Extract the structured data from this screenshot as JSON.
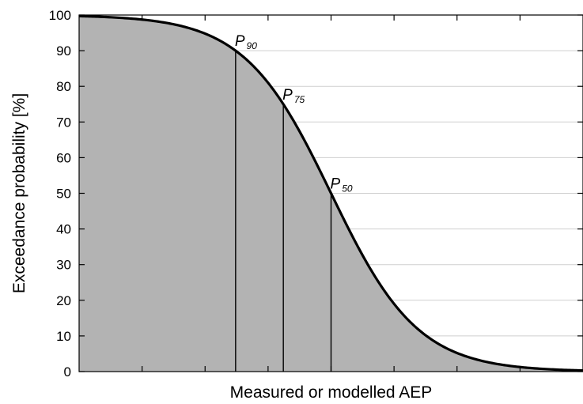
{
  "chart_data": {
    "type": "area",
    "title": "",
    "xlabel": "Measured or modelled AEP",
    "ylabel": "Exceedance probability [%]",
    "ylim": [
      0,
      100
    ],
    "yticks": [
      0,
      10,
      20,
      30,
      40,
      50,
      60,
      70,
      80,
      90,
      100
    ],
    "ytick_labels": [
      "0",
      "10",
      "20",
      "30",
      "40",
      "50",
      "60",
      "70",
      "80",
      "90",
      "100"
    ],
    "x_tick_count": 8,
    "x_tick_labels_shown": false,
    "grid": "horizontal",
    "fill_color": "#b3b3b3",
    "line_color": "#000000",
    "curve": {
      "description": "Decreasing S-shaped exceedance curve, 100% at left falling to 0% at right",
      "p50_at_x_fraction": 0.5
    },
    "annotations": [
      {
        "label": "P",
        "subscript": "90",
        "y": 90
      },
      {
        "label": "P",
        "subscript": "75",
        "y": 75
      },
      {
        "label": "P",
        "subscript": "50",
        "y": 50
      }
    ]
  }
}
